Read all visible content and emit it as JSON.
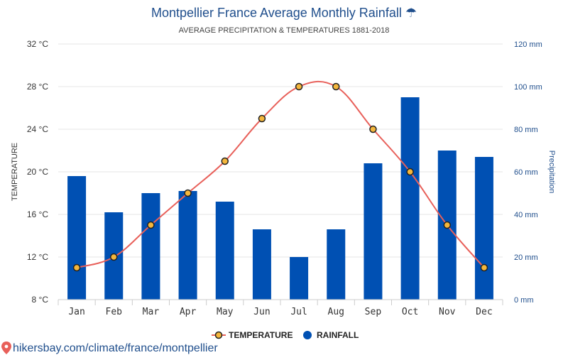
{
  "header": {
    "title": "Montpellier France Average Monthly Rainfall",
    "title_icon": "umbrella-icon",
    "subtitle": "AVERAGE PRECIPITATION & TEMPERATURES 1881-2018"
  },
  "source": {
    "text": "hikersbay.com/climate/france/montpellier",
    "icon": "map-pin-icon"
  },
  "colors": {
    "bar": "#0050b3",
    "line": "#e8605a",
    "marker_fill": "#f4b63c",
    "marker_stroke": "#222222",
    "title": "#1f4e8c"
  },
  "chart_data": {
    "type": "bar",
    "categories": [
      "Jan",
      "Feb",
      "Mar",
      "Apr",
      "May",
      "Jun",
      "Jul",
      "Aug",
      "Sep",
      "Oct",
      "Nov",
      "Dec"
    ],
    "series": [
      {
        "name": "RAINFALL",
        "type": "bar",
        "axis": "right",
        "values": [
          58,
          41,
          50,
          51,
          46,
          33,
          20,
          33,
          64,
          95,
          70,
          67
        ]
      },
      {
        "name": "TEMPERATURE",
        "type": "line",
        "axis": "left",
        "values": [
          11,
          12,
          15,
          18,
          21,
          25,
          28,
          28,
          24,
          20,
          15,
          11
        ]
      }
    ],
    "y_left": {
      "label": "TEMPERATURE",
      "range": [
        8,
        32
      ],
      "ticks": [
        32,
        28,
        24,
        20,
        16,
        12,
        8
      ],
      "tick_labels": [
        "32 °C",
        "28 °C",
        "24 °C",
        "20 °C",
        "16 °C",
        "12 °C",
        "8 °C"
      ]
    },
    "y_right": {
      "label": "Precipitation",
      "range": [
        0,
        120
      ],
      "ticks": [
        120,
        100,
        80,
        60,
        40,
        20,
        0
      ],
      "tick_labels": [
        "120 mm",
        "100 mm",
        "80 mm",
        "60 mm",
        "40 mm",
        "20 mm",
        "0 mm"
      ]
    },
    "grid": true,
    "legend": {
      "position": "bottom",
      "items": [
        "TEMPERATURE",
        "RAINFALL"
      ]
    }
  }
}
